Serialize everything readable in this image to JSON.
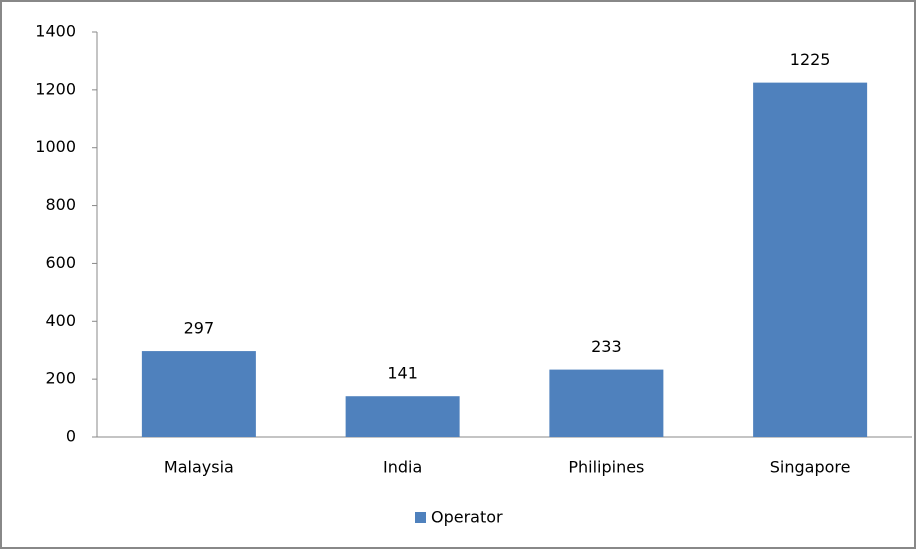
{
  "chart_data": {
    "type": "bar",
    "categories": [
      "Malaysia",
      "India",
      "Philipines",
      "Singapore"
    ],
    "series": [
      {
        "name": "Operator",
        "color": "#4f81bd",
        "values": [
          297,
          141,
          233,
          1225
        ]
      }
    ],
    "ylim": [
      0,
      1400
    ],
    "yticks": [
      0,
      200,
      400,
      600,
      800,
      1000,
      1200,
      1400
    ],
    "grid": false,
    "data_labels": true,
    "legend": "bottom"
  }
}
